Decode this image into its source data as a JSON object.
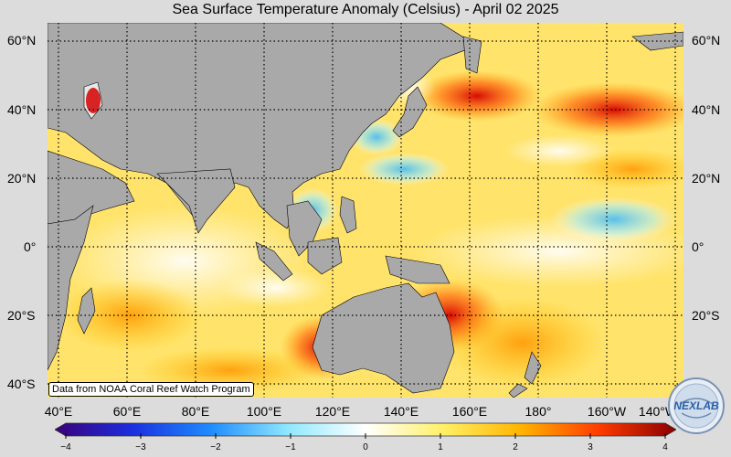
{
  "title": "Sea Surface Temperature Anomaly (Celsius) - April 02 2025",
  "source_note": "Data from NOAA Coral Reef Watch Program",
  "logo_text": "NEXLAB",
  "lat_ticks": [
    "60°N",
    "40°N",
    "20°N",
    "0°",
    "20°S",
    "40°S"
  ],
  "lon_ticks": [
    "40°E",
    "60°E",
    "80°E",
    "100°E",
    "120°E",
    "140°E",
    "160°E",
    "180°",
    "160°W",
    "140°W"
  ],
  "colorbar": {
    "min": -4,
    "max": 4,
    "tick_labels": [
      "−4",
      "−3",
      "−2",
      "−1",
      "0",
      "1",
      "2",
      "3",
      "4"
    ],
    "colors": [
      "#3a007a",
      "#1b2fe0",
      "#1e8cff",
      "#8fe8ff",
      "#ffffff",
      "#fff066",
      "#ffb400",
      "#ff3c00",
      "#8a0000"
    ]
  },
  "map": {
    "land_color": "#a9a9a9",
    "grid_style": "dotted",
    "lon_range": [
      "40°E",
      "140°W"
    ],
    "lat_range": [
      "65°N",
      "40°S"
    ]
  }
}
